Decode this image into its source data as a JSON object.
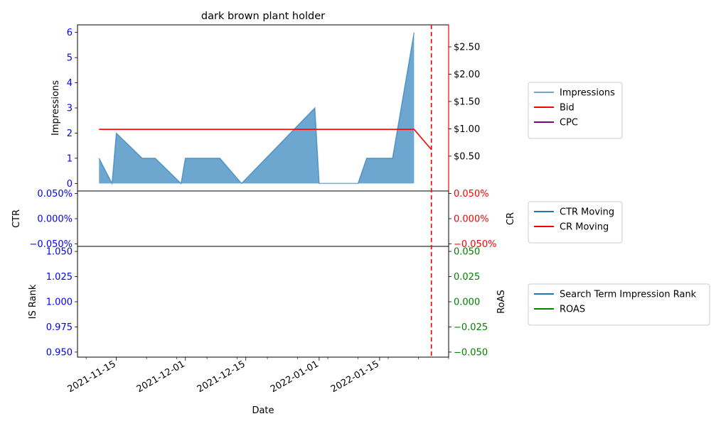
{
  "chart_data": {
    "type": "area",
    "title": "dark brown plant holder",
    "xlabel": "Date",
    "x_ticks": [
      "2021-11-15",
      "2021-12-01",
      "2021-12-15",
      "2022-01-01",
      "2022-01-15"
    ],
    "x_range": [
      "2021-11-06",
      "2022-01-31"
    ],
    "vline_date": "2022-01-27",
    "panels": [
      {
        "id": "top",
        "left_label": "Impressions",
        "left_ylim": [
          -0.3,
          6.3
        ],
        "left_ticks": [
          "0",
          "1",
          "2",
          "3",
          "4",
          "5",
          "6"
        ],
        "left_tick_values": [
          0,
          1,
          2,
          3,
          4,
          5,
          6
        ],
        "right_ylim": [
          -0.3,
          6.3
        ],
        "right_ticks": [
          "$0.50",
          "$1.00",
          "$1.50",
          "$2.00",
          "$2.50"
        ],
        "right_tick_values": [
          0.5,
          1.0,
          1.5,
          2.0,
          2.5
        ],
        "right_scale": 0.4607,
        "series": [
          {
            "name": "Impressions",
            "kind": "area",
            "color": "#1f77b4",
            "points": [
              [
                "2021-11-11",
                1
              ],
              [
                "2021-11-14",
                0
              ],
              [
                "2021-11-15",
                2
              ],
              [
                "2021-11-21",
                1
              ],
              [
                "2021-11-24",
                1
              ],
              [
                "2021-11-30",
                0
              ],
              [
                "2021-12-01",
                1
              ],
              [
                "2021-12-09",
                1
              ],
              [
                "2021-12-14",
                0
              ],
              [
                "2021-12-31",
                3
              ],
              [
                "2022-01-01",
                0
              ],
              [
                "2022-01-10",
                0
              ],
              [
                "2022-01-12",
                1
              ],
              [
                "2022-01-18",
                1
              ],
              [
                "2022-01-23",
                6
              ]
            ]
          },
          {
            "name": "Bid",
            "kind": "line",
            "axis": "right",
            "color": "#ff0000",
            "points": [
              [
                "2021-11-11",
                0.99
              ],
              [
                "2022-01-23",
                0.99
              ],
              [
                "2022-01-27",
                0.62
              ]
            ]
          },
          {
            "name": "CPC",
            "kind": "line",
            "axis": "right",
            "color": "#800080",
            "points": []
          }
        ]
      },
      {
        "id": "middle",
        "left_label": "CTR",
        "right_label": "CR",
        "left_ticks": [
          "0.050%",
          "0.000%",
          "−0.050%"
        ],
        "right_ticks": [
          "0.050%",
          "0.000%",
          "−0.050%"
        ],
        "tick_values": [
          0.05,
          0.0,
          -0.05
        ],
        "ylim": [
          -0.055,
          0.055
        ],
        "series": [
          {
            "name": "CTR Moving",
            "color": "#1f77b4",
            "points": []
          },
          {
            "name": "CR Moving",
            "color": "#ff0000",
            "points": []
          }
        ]
      },
      {
        "id": "bottom",
        "left_label": "IS Rank",
        "right_label": "RoAS",
        "left_ticks": [
          "1.050",
          "1.025",
          "1.000",
          "0.975",
          "0.950"
        ],
        "left_tick_values": [
          1.05,
          1.025,
          1.0,
          0.975,
          0.95
        ],
        "left_ylim": [
          0.945,
          1.055
        ],
        "right_ticks": [
          "0.050",
          "0.025",
          "0.000",
          "−0.025",
          "−0.050"
        ],
        "right_tick_values": [
          0.05,
          0.025,
          0.0,
          -0.025,
          -0.05
        ],
        "right_ylim": [
          -0.055,
          0.055
        ],
        "series": [
          {
            "name": "Search Term Impression Rank",
            "color": "#1f77b4",
            "points": []
          },
          {
            "name": "ROAS",
            "color": "#008000",
            "points": []
          }
        ]
      }
    ],
    "legend_placement": "right, outside plot",
    "colors": {
      "left_ticks": "#0000ff",
      "middle_right_ticks": "#ff0000",
      "bottom_right_ticks": "#008000",
      "top_right_spine": "#ff0000",
      "vline": "#ff0000"
    }
  }
}
